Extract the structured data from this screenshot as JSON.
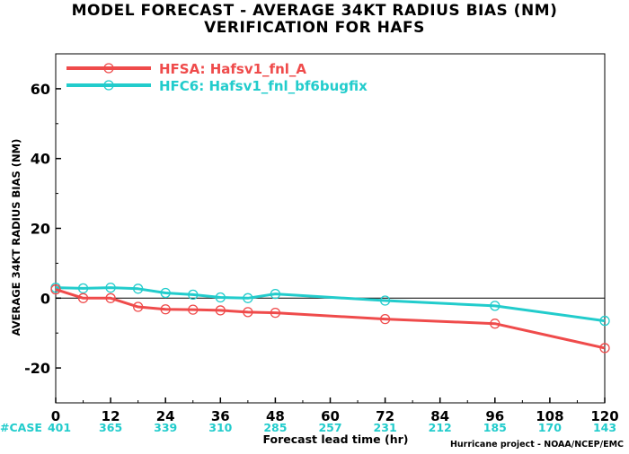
{
  "chart_data": {
    "type": "line",
    "title": "MODEL FORECAST - AVERAGE 34KT RADIUS BIAS (NM)",
    "subtitle": "VERIFICATION FOR HAFS",
    "xlabel": "Forecast lead time (hr)",
    "ylabel": "AVERAGE 34KT RADIUS BIAS (NM)",
    "xlim": [
      0,
      120
    ],
    "ylim": [
      -30,
      70
    ],
    "xticks": [
      0,
      12,
      24,
      36,
      48,
      60,
      72,
      84,
      96,
      108,
      120
    ],
    "yticks": [
      -20,
      0,
      20,
      40,
      60
    ],
    "zero_line": true,
    "legend_position": "top-left",
    "series": [
      {
        "name": "HFSA: Hafsv1_fnl_A",
        "color": "#ef4b4b",
        "x": [
          0,
          6,
          12,
          18,
          24,
          30,
          36,
          42,
          48,
          72,
          96,
          120
        ],
        "y": [
          2.5,
          0,
          0,
          -2.5,
          -3.2,
          -3.3,
          -3.5,
          -4,
          -4.2,
          -6,
          -7.3,
          -14.3
        ]
      },
      {
        "name": "HFC6: Hafsv1_fnl_bf6bugfix",
        "color": "#22cccc",
        "x": [
          0,
          6,
          12,
          18,
          24,
          30,
          36,
          42,
          48,
          72,
          96,
          120
        ],
        "y": [
          3,
          2.8,
          3,
          2.7,
          1.5,
          1,
          0.2,
          0,
          1.2,
          -0.7,
          -2.2,
          -6.5
        ]
      }
    ],
    "case_label": "#CASE",
    "case_counts": [
      {
        "x": 0,
        "count": "401"
      },
      {
        "x": 12,
        "count": "365"
      },
      {
        "x": 24,
        "count": "339"
      },
      {
        "x": 36,
        "count": "310"
      },
      {
        "x": 48,
        "count": "285"
      },
      {
        "x": 60,
        "count": "257"
      },
      {
        "x": 72,
        "count": "231"
      },
      {
        "x": 84,
        "count": "212"
      },
      {
        "x": 96,
        "count": "185"
      },
      {
        "x": 108,
        "count": "170"
      },
      {
        "x": 120,
        "count": "143"
      }
    ],
    "case_color": "#22cccc",
    "footer": "Hurricane project - NOAA/NCEP/EMC"
  }
}
